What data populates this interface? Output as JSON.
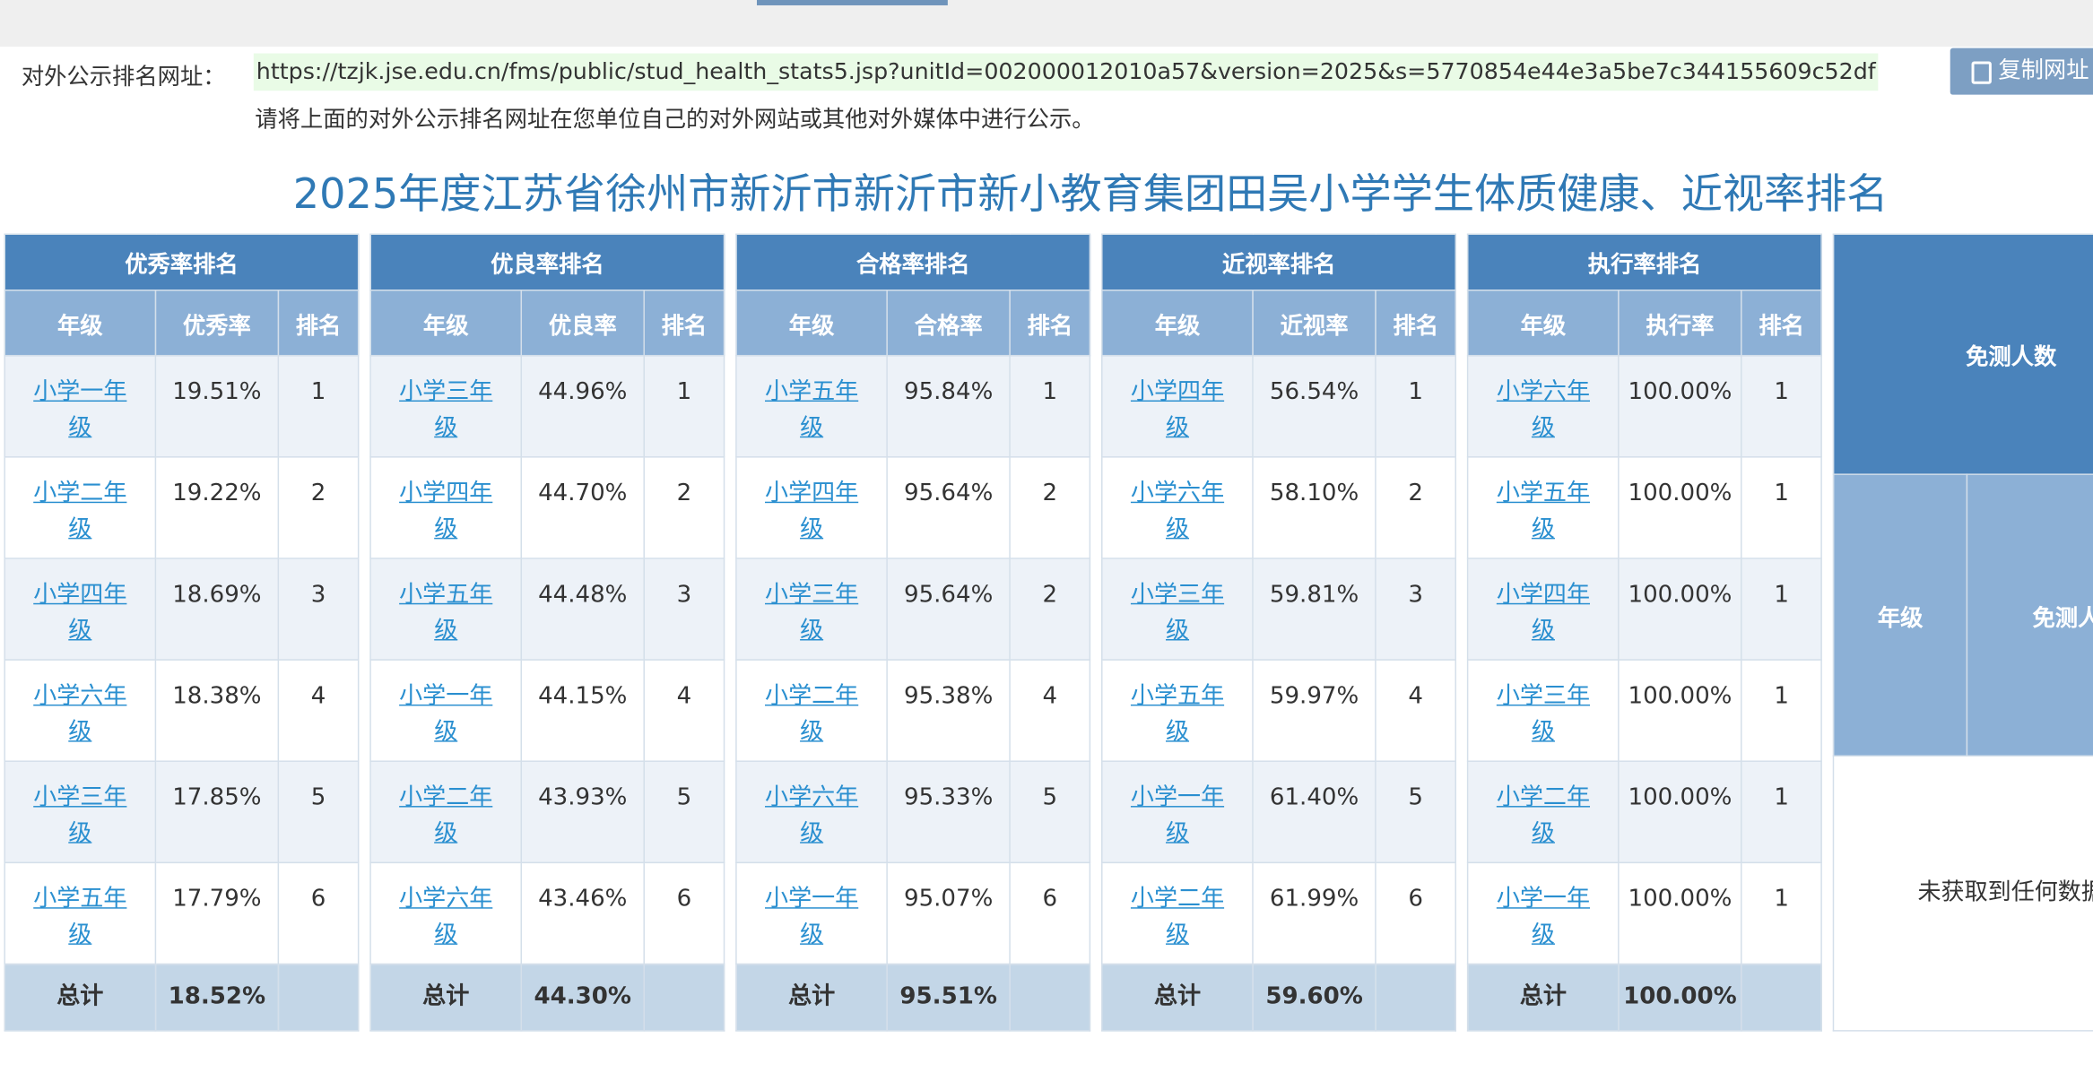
{
  "header": {
    "url_label": "对外公示排名网址：",
    "url": "https://tzjk.jse.edu.cn/fms/public/stud_health_stats5.jsp?unitId=002000012010a57&version=2025&s=5770854e44e3a5be7c344155609c52df",
    "copy_button": "复制网址",
    "notice": "请将上面的对外公示排名网址在您单位自己的对外网站或其他对外媒体中进行公示。",
    "title": "2025年度江苏省徐州市新沂市新沂市新小教育集团田吴小学学生体质健康、近视率排名"
  },
  "tables": [
    {
      "title": "优秀率排名",
      "columns": [
        "年级",
        "优秀率",
        "排名"
      ],
      "rows": [
        [
          "小学一年级",
          "19.51%",
          "1"
        ],
        [
          "小学二年级",
          "19.22%",
          "2"
        ],
        [
          "小学四年级",
          "18.69%",
          "3"
        ],
        [
          "小学六年级",
          "18.38%",
          "4"
        ],
        [
          "小学三年级",
          "17.85%",
          "5"
        ],
        [
          "小学五年级",
          "17.79%",
          "6"
        ]
      ],
      "total": [
        "总计",
        "18.52%"
      ]
    },
    {
      "title": "优良率排名",
      "columns": [
        "年级",
        "优良率",
        "排名"
      ],
      "rows": [
        [
          "小学三年级",
          "44.96%",
          "1"
        ],
        [
          "小学四年级",
          "44.70%",
          "2"
        ],
        [
          "小学五年级",
          "44.48%",
          "3"
        ],
        [
          "小学一年级",
          "44.15%",
          "4"
        ],
        [
          "小学二年级",
          "43.93%",
          "5"
        ],
        [
          "小学六年级",
          "43.46%",
          "6"
        ]
      ],
      "total": [
        "总计",
        "44.30%"
      ]
    },
    {
      "title": "合格率排名",
      "columns": [
        "年级",
        "合格率",
        "排名"
      ],
      "rows": [
        [
          "小学五年级",
          "95.84%",
          "1"
        ],
        [
          "小学四年级",
          "95.64%",
          "2"
        ],
        [
          "小学三年级",
          "95.64%",
          "2"
        ],
        [
          "小学二年级",
          "95.38%",
          "4"
        ],
        [
          "小学六年级",
          "95.33%",
          "5"
        ],
        [
          "小学一年级",
          "95.07%",
          "6"
        ]
      ],
      "total": [
        "总计",
        "95.51%"
      ]
    },
    {
      "title": "近视率排名",
      "columns": [
        "年级",
        "近视率",
        "排名"
      ],
      "rows": [
        [
          "小学四年级",
          "56.54%",
          "1"
        ],
        [
          "小学六年级",
          "58.10%",
          "2"
        ],
        [
          "小学三年级",
          "59.81%",
          "3"
        ],
        [
          "小学五年级",
          "59.97%",
          "4"
        ],
        [
          "小学一年级",
          "61.40%",
          "5"
        ],
        [
          "小学二年级",
          "61.99%",
          "6"
        ]
      ],
      "total": [
        "总计",
        "59.60%"
      ]
    },
    {
      "title": "执行率排名",
      "columns": [
        "年级",
        "执行率",
        "排名"
      ],
      "rows": [
        [
          "小学六年级",
          "100.00%",
          "1"
        ],
        [
          "小学五年级",
          "100.00%",
          "1"
        ],
        [
          "小学四年级",
          "100.00%",
          "1"
        ],
        [
          "小学三年级",
          "100.00%",
          "1"
        ],
        [
          "小学二年级",
          "100.00%",
          "1"
        ],
        [
          "小学一年级",
          "100.00%",
          "1"
        ]
      ],
      "total": [
        "总计",
        "100.00%"
      ]
    },
    {
      "title": "免测人数",
      "columns": [
        "年级",
        "免测人数"
      ],
      "empty_message": "未获取到任何数据"
    }
  ]
}
